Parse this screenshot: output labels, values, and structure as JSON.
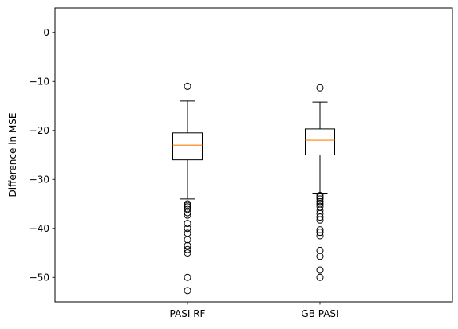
{
  "chart_data": {
    "type": "box",
    "categories": [
      "PASI RF",
      "GB PASI"
    ],
    "ylabel": "Difference in MSE",
    "xlabel": "",
    "ylim": [
      -55,
      5
    ],
    "yticks": [
      0,
      -10,
      -20,
      -30,
      -40,
      -50
    ],
    "grid": false,
    "boxes": [
      {
        "category": "PASI RF",
        "median": -23.0,
        "q1": -26.0,
        "q3": -20.5,
        "whisker_low": -34.0,
        "whisker_high": -14.0,
        "outliers": [
          -11.0,
          -35.0,
          -35.3,
          -35.6,
          -36.0,
          -36.8,
          -37.3,
          -39.0,
          -40.0,
          -41.0,
          -42.3,
          -43.5,
          -44.3,
          -45.0,
          -50.0,
          -52.7
        ]
      },
      {
        "category": "GB PASI",
        "median": -22.0,
        "q1": -25.0,
        "q3": -19.7,
        "whisker_low": -32.8,
        "whisker_high": -14.2,
        "outliers": [
          -11.3,
          -33.3,
          -33.6,
          -34.0,
          -34.5,
          -35.0,
          -35.5,
          -36.3,
          -37.0,
          -37.7,
          -38.3,
          -40.3,
          -40.8,
          -41.5,
          -44.5,
          -45.7,
          -48.5,
          -50.0
        ]
      }
    ],
    "colors": {
      "box": "#000000",
      "median": "#ff7f0e",
      "outlier_edge": "#000000"
    }
  }
}
